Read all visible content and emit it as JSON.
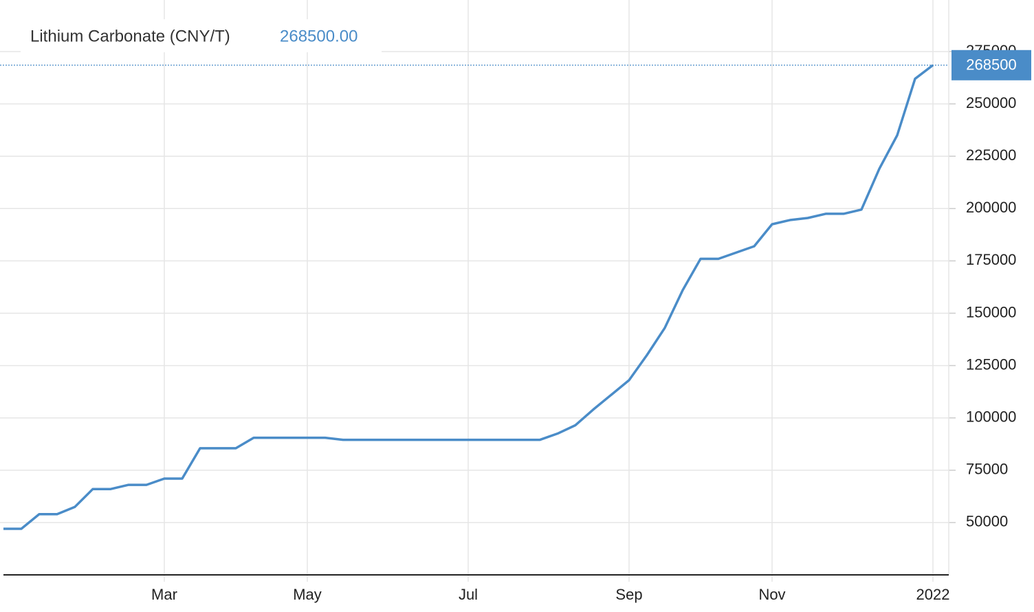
{
  "chart_data": {
    "type": "line",
    "title": "Lithium Carbonate (CNY/T)",
    "last_value_label": "268500.00",
    "categories": [
      null,
      null,
      null,
      null,
      null,
      null,
      null,
      null,
      null,
      "Mar",
      null,
      null,
      null,
      null,
      null,
      null,
      null,
      "May",
      null,
      null,
      null,
      null,
      null,
      null,
      null,
      null,
      "Jul",
      null,
      null,
      null,
      null,
      null,
      null,
      null,
      null,
      "Sep",
      null,
      null,
      null,
      null,
      null,
      null,
      null,
      "Nov",
      null,
      null,
      null,
      null,
      null,
      null,
      null,
      null,
      "2022"
    ],
    "series": [
      {
        "name": "Lithium Carbonate",
        "color": "#4a8cc8",
        "values": [
          47000,
          47000,
          54000,
          54000,
          57500,
          66000,
          66000,
          68000,
          68000,
          71000,
          71000,
          85500,
          85500,
          85500,
          90500,
          90500,
          90500,
          90500,
          90500,
          89500,
          89500,
          89500,
          89500,
          89500,
          89500,
          89500,
          89500,
          89500,
          89500,
          89500,
          89500,
          92500,
          96500,
          104000,
          111000,
          118000,
          130000,
          143000,
          161000,
          176000,
          176000,
          179000,
          182000,
          192500,
          194500,
          195500,
          197500,
          197500,
          199500,
          219000,
          235000,
          262000,
          268500
        ]
      }
    ],
    "ylim": [
      25000,
      275000
    ],
    "yticks": [
      50000,
      75000,
      100000,
      125000,
      150000,
      175000,
      200000,
      225000,
      250000,
      275000
    ],
    "grid": true
  }
}
